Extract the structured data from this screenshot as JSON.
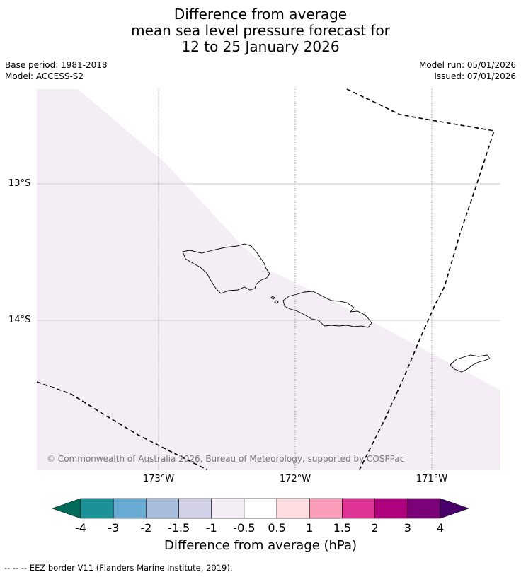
{
  "title": {
    "line1": "Difference from average",
    "line2": "mean sea level pressure forecast for",
    "line3": "12 to 25 January 2026"
  },
  "meta": {
    "base_period": "Base period: 1981-2018",
    "model": "Model: ACCESS-S2",
    "model_run": "Model run: 05/01/2026",
    "issued": "Issued: 07/01/2026"
  },
  "axes": {
    "lat_labels": [
      "13°S",
      "14°S"
    ],
    "lon_labels": [
      "173°W",
      "172°W",
      "171°W"
    ]
  },
  "copyright": "© Commonwealth of Australia 2026, Bureau of Meteorology, supported by COSPPac",
  "colorbar": {
    "ticks": [
      "-4",
      "-3",
      "-2",
      "-1.5",
      "-1",
      "-0.5",
      "0.5",
      "1",
      "1.5",
      "2",
      "3",
      "4"
    ],
    "colors": [
      "#1a9298",
      "#69acd3",
      "#a8bcdb",
      "#d0d1e6",
      "#f4edf6",
      "#ffffff",
      "#ffdde1",
      "#f99db8",
      "#dd3496",
      "#ae017e",
      "#7a0177"
    ],
    "under_color": "#016c59",
    "over_color": "#49006a",
    "label": "Difference from average (hPa)"
  },
  "footer": "--  --  -- EEZ border V11 (Flanders Marine Institute, 2019).",
  "colors": {
    "shade": "#f4edf6",
    "grid": "#bbbbbb"
  }
}
